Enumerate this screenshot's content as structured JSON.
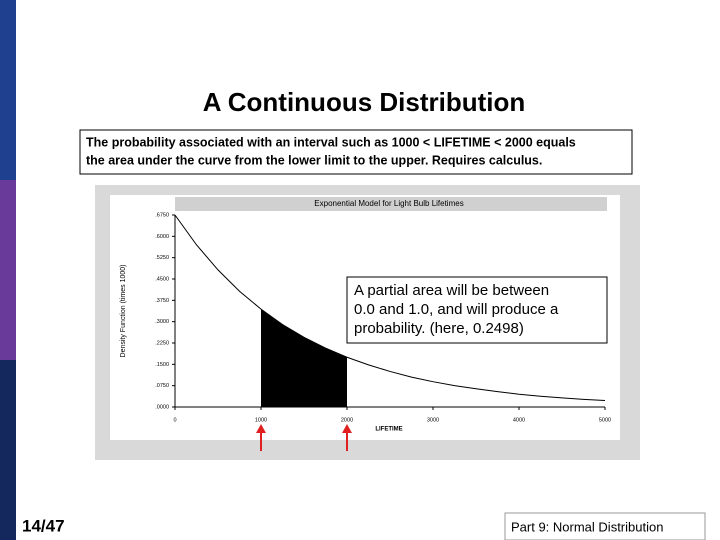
{
  "slide": {
    "title": "A Continuous Distribution",
    "callout": [
      "The probability associated with an interval such as 1000 < LIFETIME < 2000  equals",
      "the area under the curve from the lower limit to the upper.  Requires calculus."
    ],
    "annotation": [
      "A partial area will be between",
      "0.0 and 1.0, and will produce a",
      "probability.  (here, 0.2498)"
    ],
    "page_number": "14/47",
    "footer": "Part 9: Normal Distribution"
  },
  "chart_data": {
    "type": "line",
    "title": "Exponential Model for Light Bulb Lifetimes",
    "x_label": "LIFETIME",
    "y_label": "Density Function (times 1000)",
    "x": [
      0,
      250,
      500,
      750,
      1000,
      1250,
      1500,
      1750,
      2000,
      2250,
      2500,
      2750,
      3000,
      3250,
      3500,
      3750,
      4000,
      4250,
      4500,
      4750,
      5000
    ],
    "values": [
      0.675,
      0.57,
      0.482,
      0.407,
      0.344,
      0.29,
      0.245,
      0.207,
      0.175,
      0.148,
      0.125,
      0.105,
      0.089,
      0.075,
      0.064,
      0.054,
      0.045,
      0.038,
      0.032,
      0.027,
      0.023
    ],
    "color": "#000000",
    "shade_range": [
      1000,
      2000
    ],
    "xlim": [
      0,
      5000
    ],
    "xticks": [
      0,
      1000,
      2000,
      3000,
      4000,
      5000
    ],
    "ylim": [
      0,
      0.675
    ],
    "yticks": [
      {
        "value": 0,
        "label": ".0000"
      },
      {
        "value": 0.075,
        "label": ".0750"
      },
      {
        "value": 0.15,
        "label": ".1500"
      },
      {
        "value": 0.225,
        "label": ".2250"
      },
      {
        "value": 0.3,
        "label": ".3000"
      },
      {
        "value": 0.375,
        "label": ".3750"
      },
      {
        "value": 0.45,
        "label": ".4500"
      },
      {
        "value": 0.525,
        "label": ".5250"
      },
      {
        "value": 0.6,
        "label": ".6000"
      },
      {
        "value": 0.675,
        "label": ".6750"
      }
    ]
  }
}
